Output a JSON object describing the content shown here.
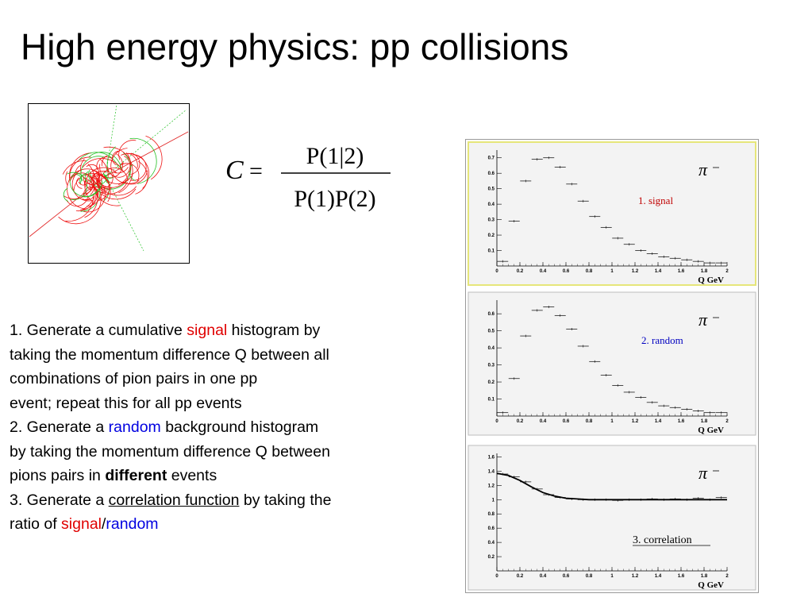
{
  "slide": {
    "title": "High energy physics: pp collisions"
  },
  "formula": {
    "lhs": "C",
    "equals": "=",
    "numerator": "P(1|2)",
    "denominator": "P(1)P(2)"
  },
  "steps": {
    "s1_a": "1. Generate a cumulative ",
    "s1_signal": "signal",
    "s1_b": " histogram by",
    "s1_l2": "taking the momentum difference Q between all",
    "s1_l3": "combinations of pion pairs in one pp",
    "s1_l4": "event; repeat this for all pp events",
    "s2_a": "2. Generate a ",
    "s2_random": "random",
    "s2_b": " background histogram",
    "s2_l2": "by taking the momentum difference Q between",
    "s2_l3a": "pions pairs in ",
    "s2_different": "different",
    "s2_l3b": " events",
    "s3_a": "3. Generate a ",
    "s3_corr": "correlation function",
    "s3_b": " by taking the",
    "s3_l2a": "ratio of ",
    "s3_signal": "signal",
    "s3_slash": "/",
    "s3_random": "random"
  },
  "colors": {
    "signal": "#e00000",
    "random": "#0000e0",
    "highlight_border": "#e6e67a",
    "panel_bg": "#f3f3f3"
  },
  "chart_data": [
    {
      "type": "scatter",
      "name": "signal",
      "label": "1. signal",
      "symbol": "π",
      "xlabel": "Q  GeV",
      "x_ticks": [
        "0",
        "0.2",
        "0.4",
        "0.6",
        "0.8",
        "1",
        "1.2",
        "1.4",
        "1.6",
        "1.8",
        "2"
      ],
      "y_ticks": [
        "0.1",
        "0.2",
        "0.3",
        "0.4",
        "0.5",
        "0.6",
        "0.7"
      ],
      "xlim": [
        0,
        2
      ],
      "ylim": [
        0,
        0.75
      ],
      "x": [
        0.05,
        0.15,
        0.25,
        0.35,
        0.45,
        0.55,
        0.65,
        0.75,
        0.85,
        0.95,
        1.05,
        1.15,
        1.25,
        1.35,
        1.45,
        1.55,
        1.65,
        1.75,
        1.85,
        1.95
      ],
      "y": [
        0.03,
        0.29,
        0.55,
        0.69,
        0.7,
        0.64,
        0.53,
        0.42,
        0.32,
        0.25,
        0.18,
        0.14,
        0.1,
        0.08,
        0.06,
        0.05,
        0.04,
        0.03,
        0.02,
        0.02
      ]
    },
    {
      "type": "scatter",
      "name": "random",
      "label": "2. random",
      "symbol": "π",
      "xlabel": "Q  GeV",
      "x_ticks": [
        "0",
        "0.2",
        "0.4",
        "0.6",
        "0.8",
        "1",
        "1.2",
        "1.4",
        "1.6",
        "1.8",
        "2"
      ],
      "y_ticks": [
        "0.1",
        "0.2",
        "0.3",
        "0.4",
        "0.5",
        "0.6"
      ],
      "xlim": [
        0,
        2
      ],
      "ylim": [
        0,
        0.68
      ],
      "x": [
        0.05,
        0.15,
        0.25,
        0.35,
        0.45,
        0.55,
        0.65,
        0.75,
        0.85,
        0.95,
        1.05,
        1.15,
        1.25,
        1.35,
        1.45,
        1.55,
        1.65,
        1.75,
        1.85,
        1.95
      ],
      "y": [
        0.02,
        0.22,
        0.47,
        0.62,
        0.64,
        0.59,
        0.51,
        0.41,
        0.32,
        0.24,
        0.18,
        0.14,
        0.11,
        0.08,
        0.06,
        0.05,
        0.04,
        0.03,
        0.02,
        0.02
      ]
    },
    {
      "type": "line",
      "name": "correlation",
      "label": "3. correlation",
      "symbol": "π",
      "xlabel": "Q  GeV",
      "x_ticks": [
        "0",
        "0.2",
        "0.4",
        "0.6",
        "0.8",
        "1",
        "1.2",
        "1.4",
        "1.6",
        "1.8",
        "2"
      ],
      "y_ticks": [
        "0.2",
        "0.4",
        "0.6",
        "0.8",
        "1",
        "1.2",
        "1.4",
        "1.6"
      ],
      "xlim": [
        0,
        2
      ],
      "ylim": [
        0,
        1.65
      ],
      "x": [
        0.05,
        0.15,
        0.25,
        0.35,
        0.45,
        0.55,
        0.65,
        0.75,
        0.85,
        0.95,
        1.05,
        1.15,
        1.25,
        1.35,
        1.45,
        1.55,
        1.65,
        1.75,
        1.85,
        1.95
      ],
      "y": [
        1.36,
        1.32,
        1.25,
        1.15,
        1.07,
        1.03,
        1.01,
        1.0,
        1.0,
        1.0,
        0.99,
        1.0,
        1.0,
        1.01,
        1.0,
        1.01,
        1.0,
        1.02,
        1.0,
        1.03
      ],
      "fit_x": [
        0,
        0.1,
        0.2,
        0.3,
        0.4,
        0.5,
        0.6,
        0.7,
        0.8,
        0.9,
        1.0,
        1.2,
        1.5,
        2.0
      ],
      "fit_y": [
        1.37,
        1.34,
        1.27,
        1.18,
        1.1,
        1.05,
        1.02,
        1.01,
        1.0,
        1.0,
        1.0,
        1.0,
        1.0,
        1.0
      ]
    }
  ]
}
